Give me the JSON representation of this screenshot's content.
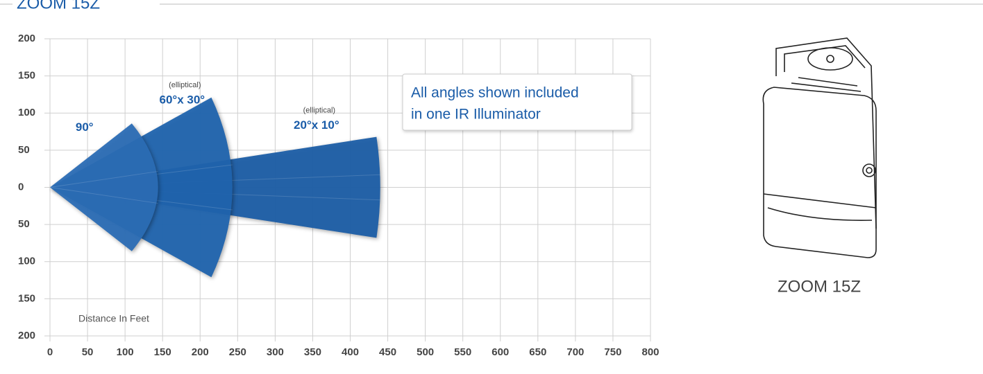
{
  "chart_data": {
    "type": "sector",
    "title": "ZOOM 15Z",
    "x_label": "Distance In Feet",
    "callout": [
      "All angles shown included",
      "in one IR Illuminator"
    ],
    "xlim": [
      0,
      800
    ],
    "ylim": [
      -200,
      200
    ],
    "xticks": [
      0,
      50,
      100,
      150,
      200,
      250,
      300,
      350,
      400,
      450,
      500,
      550,
      600,
      650,
      700,
      750,
      800
    ],
    "yticks": [
      200,
      150,
      100,
      50,
      0,
      {
        "value": -50,
        "label": "50"
      },
      {
        "value": -100,
        "label": "100"
      },
      {
        "value": -150,
        "label": "150"
      },
      {
        "value": -200,
        "label": "200"
      }
    ],
    "grid": true,
    "beams": [
      {
        "label": "90°",
        "edge_x": 109,
        "edge_y": 86,
        "reach": 144,
        "color": "#2b6db5"
      },
      {
        "label": "60°x 30°",
        "note": "(elliptical)",
        "edge_x": 215,
        "edge_y": 121,
        "reach": 243,
        "color": "#2064ae"
      },
      {
        "label": "20°x 10°",
        "note": "(elliptical)",
        "edge_x": 435,
        "edge_y": 68,
        "reach": 440,
        "color": "#1c5ea7"
      }
    ]
  }
}
